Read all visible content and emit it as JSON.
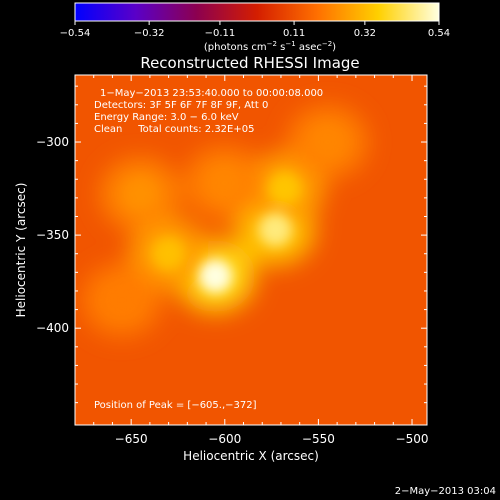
{
  "chart_data": {
    "type": "heatmap",
    "title": "Reconstructed RHESSI Image",
    "xlabel": "Heliocentric X (arcsec)",
    "ylabel": "Heliocentric Y (arcsec)",
    "xlim": [
      -680,
      -492
    ],
    "ylim": [
      -452,
      -264
    ],
    "x_ticks": [
      -650,
      -600,
      -550,
      -500
    ],
    "y_ticks": [
      -300,
      -350,
      -400
    ],
    "x_tick_labels": [
      "−650",
      "−600",
      "−550",
      "−500"
    ],
    "y_tick_labels": [
      "−300",
      "−350",
      "−400"
    ],
    "colorbar": {
      "range": [
        -0.54,
        0.54
      ],
      "ticks": [
        -0.54,
        -0.32,
        -0.11,
        0.11,
        0.32,
        0.54
      ],
      "tick_labels": [
        "−0.54",
        "−0.32",
        "−0.11",
        "0.11",
        "0.32",
        "0.54"
      ],
      "stops": [
        "#0000ff",
        "#5a00c8",
        "#8c0050",
        "#d41e00",
        "#ff7000",
        "#ffd000",
        "#ffffe0"
      ],
      "unit_main": "(photons cm",
      "unit_exp1": "−2",
      "unit_mid": " s",
      "unit_exp2": "−1",
      "unit_tail": " asec",
      "unit_exp3": "−2",
      "unit_close": ")"
    },
    "annotations": [
      "1−May−2013 23:53:40.000 to 00:00:08.000",
      "Detectors: 3F 5F 6F 7F 8F 9F, Att 0",
      "Energy Range: 3.0 − 6.0 keV",
      "Clean     Total counts: 2.32E+05"
    ],
    "peak_text": "Position of Peak = [−605.,−372]",
    "background_value": 0.12,
    "sources": [
      {
        "x": -605,
        "y": -372,
        "value": 0.54
      },
      {
        "x": -573,
        "y": -347,
        "value": 0.46
      },
      {
        "x": -568,
        "y": -325,
        "value": 0.34
      },
      {
        "x": -630,
        "y": -360,
        "value": 0.33
      },
      {
        "x": -645,
        "y": -328,
        "value": 0.24
      },
      {
        "x": -600,
        "y": -322,
        "value": 0.22
      },
      {
        "x": -545,
        "y": -300,
        "value": 0.22
      },
      {
        "x": -655,
        "y": -385,
        "value": 0.2
      }
    ]
  },
  "footer": {
    "timestamp": "2−May−2013 03:04"
  }
}
